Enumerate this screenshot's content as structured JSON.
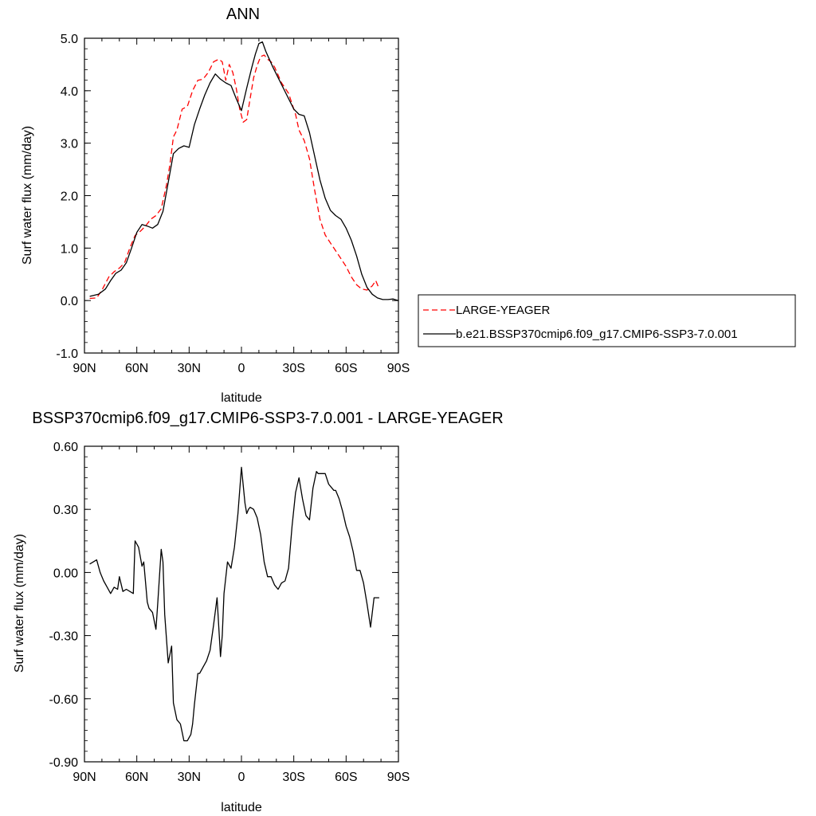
{
  "chart_data": [
    {
      "type": "line",
      "title": "ANN",
      "xlabel": "latitude",
      "ylabel": "Surf water flux (mm/day)",
      "xlim": [
        -90,
        90
      ],
      "ylim": [
        -1.0,
        5.0
      ],
      "x_ticks": [
        {
          "v": -90,
          "label": "90N"
        },
        {
          "v": -60,
          "label": "60N"
        },
        {
          "v": -30,
          "label": "30N"
        },
        {
          "v": 0,
          "label": "0"
        },
        {
          "v": 30,
          "label": "30S"
        },
        {
          "v": 60,
          "label": "60S"
        },
        {
          "v": 90,
          "label": "90S"
        }
      ],
      "y_ticks": [
        {
          "v": -1.0,
          "label": "-1.0"
        },
        {
          "v": 0.0,
          "label": "0.0"
        },
        {
          "v": 1.0,
          "label": "1.0"
        },
        {
          "v": 2.0,
          "label": "2.0"
        },
        {
          "v": 3.0,
          "label": "3.0"
        },
        {
          "v": 4.0,
          "label": "4.0"
        },
        {
          "v": 5.0,
          "label": "5.0"
        }
      ],
      "legend_position": "right",
      "series": [
        {
          "name": "LARGE-YEAGER",
          "color": "#ff0000",
          "style": "dashed",
          "x": [
            -87,
            -83,
            -80,
            -76,
            -73,
            -70,
            -67,
            -64,
            -61,
            -58,
            -55,
            -52,
            -49,
            -46,
            -43,
            -41,
            -39,
            -37,
            -34,
            -31,
            -28,
            -25,
            -22,
            -19,
            -16,
            -13,
            -11,
            -9,
            -7,
            -5,
            -3,
            -1,
            1,
            3,
            5,
            7,
            9,
            11,
            13,
            15,
            17,
            19,
            21,
            23,
            25,
            27,
            29,
            31,
            33,
            36,
            39,
            42,
            45,
            48,
            51,
            54,
            57,
            60,
            63,
            66,
            69,
            72,
            75,
            77,
            78,
            79
          ],
          "y": [
            0.04,
            0.05,
            0.2,
            0.45,
            0.55,
            0.62,
            0.72,
            1.0,
            1.24,
            1.32,
            1.42,
            1.55,
            1.62,
            1.75,
            2.2,
            2.6,
            3.12,
            3.25,
            3.65,
            3.7,
            4.0,
            4.2,
            4.22,
            4.35,
            4.55,
            4.6,
            4.55,
            4.2,
            4.5,
            4.35,
            4.05,
            3.65,
            3.4,
            3.45,
            3.85,
            4.25,
            4.48,
            4.65,
            4.68,
            4.6,
            4.55,
            4.45,
            4.3,
            4.15,
            4.05,
            3.95,
            3.75,
            3.55,
            3.25,
            3.05,
            2.7,
            2.1,
            1.55,
            1.25,
            1.1,
            0.95,
            0.8,
            0.65,
            0.45,
            0.3,
            0.22,
            0.2,
            0.28,
            0.38,
            0.3,
            0.22
          ]
        },
        {
          "name": "b.e21.BSSP370cmip6.f09_g17.CMIP6-SSP3-7.0.001",
          "color": "#000000",
          "style": "solid",
          "x": [
            -87,
            -82,
            -78,
            -75,
            -72,
            -69,
            -66,
            -63,
            -60,
            -57,
            -54,
            -51,
            -48,
            -45,
            -42,
            -39,
            -36,
            -33,
            -30,
            -27,
            -24,
            -21,
            -18,
            -15,
            -12,
            -9,
            -6,
            -3,
            0,
            3,
            6,
            8,
            10,
            12,
            14,
            16,
            18,
            21,
            24,
            27,
            30,
            33,
            36,
            39,
            42,
            45,
            48,
            51,
            54,
            57,
            60,
            63,
            66,
            69,
            72,
            75,
            78,
            81,
            84,
            87,
            90
          ],
          "y": [
            0.08,
            0.12,
            0.22,
            0.38,
            0.52,
            0.58,
            0.72,
            1.0,
            1.3,
            1.45,
            1.42,
            1.38,
            1.45,
            1.7,
            2.25,
            2.8,
            2.9,
            2.95,
            2.92,
            3.35,
            3.65,
            3.92,
            4.15,
            4.32,
            4.22,
            4.15,
            4.1,
            3.85,
            3.62,
            4.05,
            4.45,
            4.7,
            4.9,
            4.93,
            4.75,
            4.6,
            4.45,
            4.25,
            4.05,
            3.85,
            3.65,
            3.55,
            3.52,
            3.2,
            2.75,
            2.3,
            1.95,
            1.72,
            1.62,
            1.55,
            1.38,
            1.15,
            0.85,
            0.5,
            0.25,
            0.12,
            0.05,
            0.02,
            0.02,
            0.03,
            0.0
          ]
        }
      ]
    },
    {
      "type": "line",
      "title": "BSSP370cmip6.f09_g17.CMIP6-SSP3-7.0.001 - LARGE-YEAGER",
      "xlabel": "latitude",
      "ylabel": "Surf water flux (mm/day)",
      "xlim": [
        -90,
        90
      ],
      "ylim": [
        -0.9,
        0.6
      ],
      "x_ticks": [
        {
          "v": -90,
          "label": "90N"
        },
        {
          "v": -60,
          "label": "60N"
        },
        {
          "v": -30,
          "label": "30N"
        },
        {
          "v": 0,
          "label": "0"
        },
        {
          "v": 30,
          "label": "30S"
        },
        {
          "v": 60,
          "label": "60S"
        },
        {
          "v": 90,
          "label": "90S"
        }
      ],
      "y_ticks": [
        {
          "v": -0.9,
          "label": "-0.90"
        },
        {
          "v": -0.6,
          "label": "-0.60"
        },
        {
          "v": -0.3,
          "label": "-0.30"
        },
        {
          "v": 0.0,
          "label": "0.00"
        },
        {
          "v": 0.3,
          "label": "0.30"
        },
        {
          "v": 0.6,
          "label": "0.60"
        }
      ],
      "series": [
        {
          "name": "",
          "color": "#000000",
          "style": "solid",
          "x": [
            -87,
            -83,
            -81,
            -79,
            -77,
            -75,
            -73,
            -71,
            -70,
            -68,
            -66,
            -62,
            -61,
            -59,
            -57,
            -56,
            -54,
            -53,
            -51,
            -49,
            -48,
            -46,
            -45,
            -44,
            -42,
            -40,
            -39,
            -37,
            -35,
            -33,
            -31,
            -29,
            -28,
            -27,
            -25,
            -24,
            -22,
            -20,
            -18,
            -16,
            -14,
            -12,
            -11,
            -10,
            -8,
            -6,
            -4,
            -2,
            0,
            2,
            3,
            4,
            5,
            7,
            9,
            11,
            13,
            15,
            17,
            19,
            21,
            23,
            25,
            27,
            29,
            31,
            33,
            35,
            37,
            39,
            41,
            43,
            44,
            46,
            48,
            50,
            52,
            53,
            54,
            56,
            58,
            60,
            62,
            64,
            66,
            68,
            70,
            72,
            74,
            76,
            78,
            79
          ],
          "y": [
            0.04,
            0.06,
            0.0,
            -0.04,
            -0.07,
            -0.1,
            -0.07,
            -0.08,
            -0.02,
            -0.09,
            -0.08,
            -0.1,
            0.15,
            0.12,
            0.03,
            0.05,
            -0.14,
            -0.17,
            -0.19,
            -0.27,
            -0.15,
            0.11,
            0.05,
            -0.2,
            -0.43,
            -0.35,
            -0.62,
            -0.7,
            -0.72,
            -0.8,
            -0.8,
            -0.77,
            -0.72,
            -0.63,
            -0.48,
            -0.48,
            -0.45,
            -0.42,
            -0.37,
            -0.25,
            -0.12,
            -0.4,
            -0.3,
            -0.1,
            0.05,
            0.02,
            0.12,
            0.28,
            0.5,
            0.33,
            0.28,
            0.3,
            0.31,
            0.3,
            0.26,
            0.18,
            0.05,
            -0.02,
            -0.02,
            -0.06,
            -0.08,
            -0.05,
            -0.04,
            0.02,
            0.22,
            0.38,
            0.45,
            0.35,
            0.27,
            0.25,
            0.4,
            0.48,
            0.47,
            0.47,
            0.47,
            0.42,
            0.4,
            0.39,
            0.39,
            0.35,
            0.29,
            0.22,
            0.17,
            0.1,
            0.01,
            0.01,
            -0.05,
            -0.15,
            -0.26,
            -0.12,
            -0.12,
            -0.12
          ]
        }
      ]
    }
  ]
}
